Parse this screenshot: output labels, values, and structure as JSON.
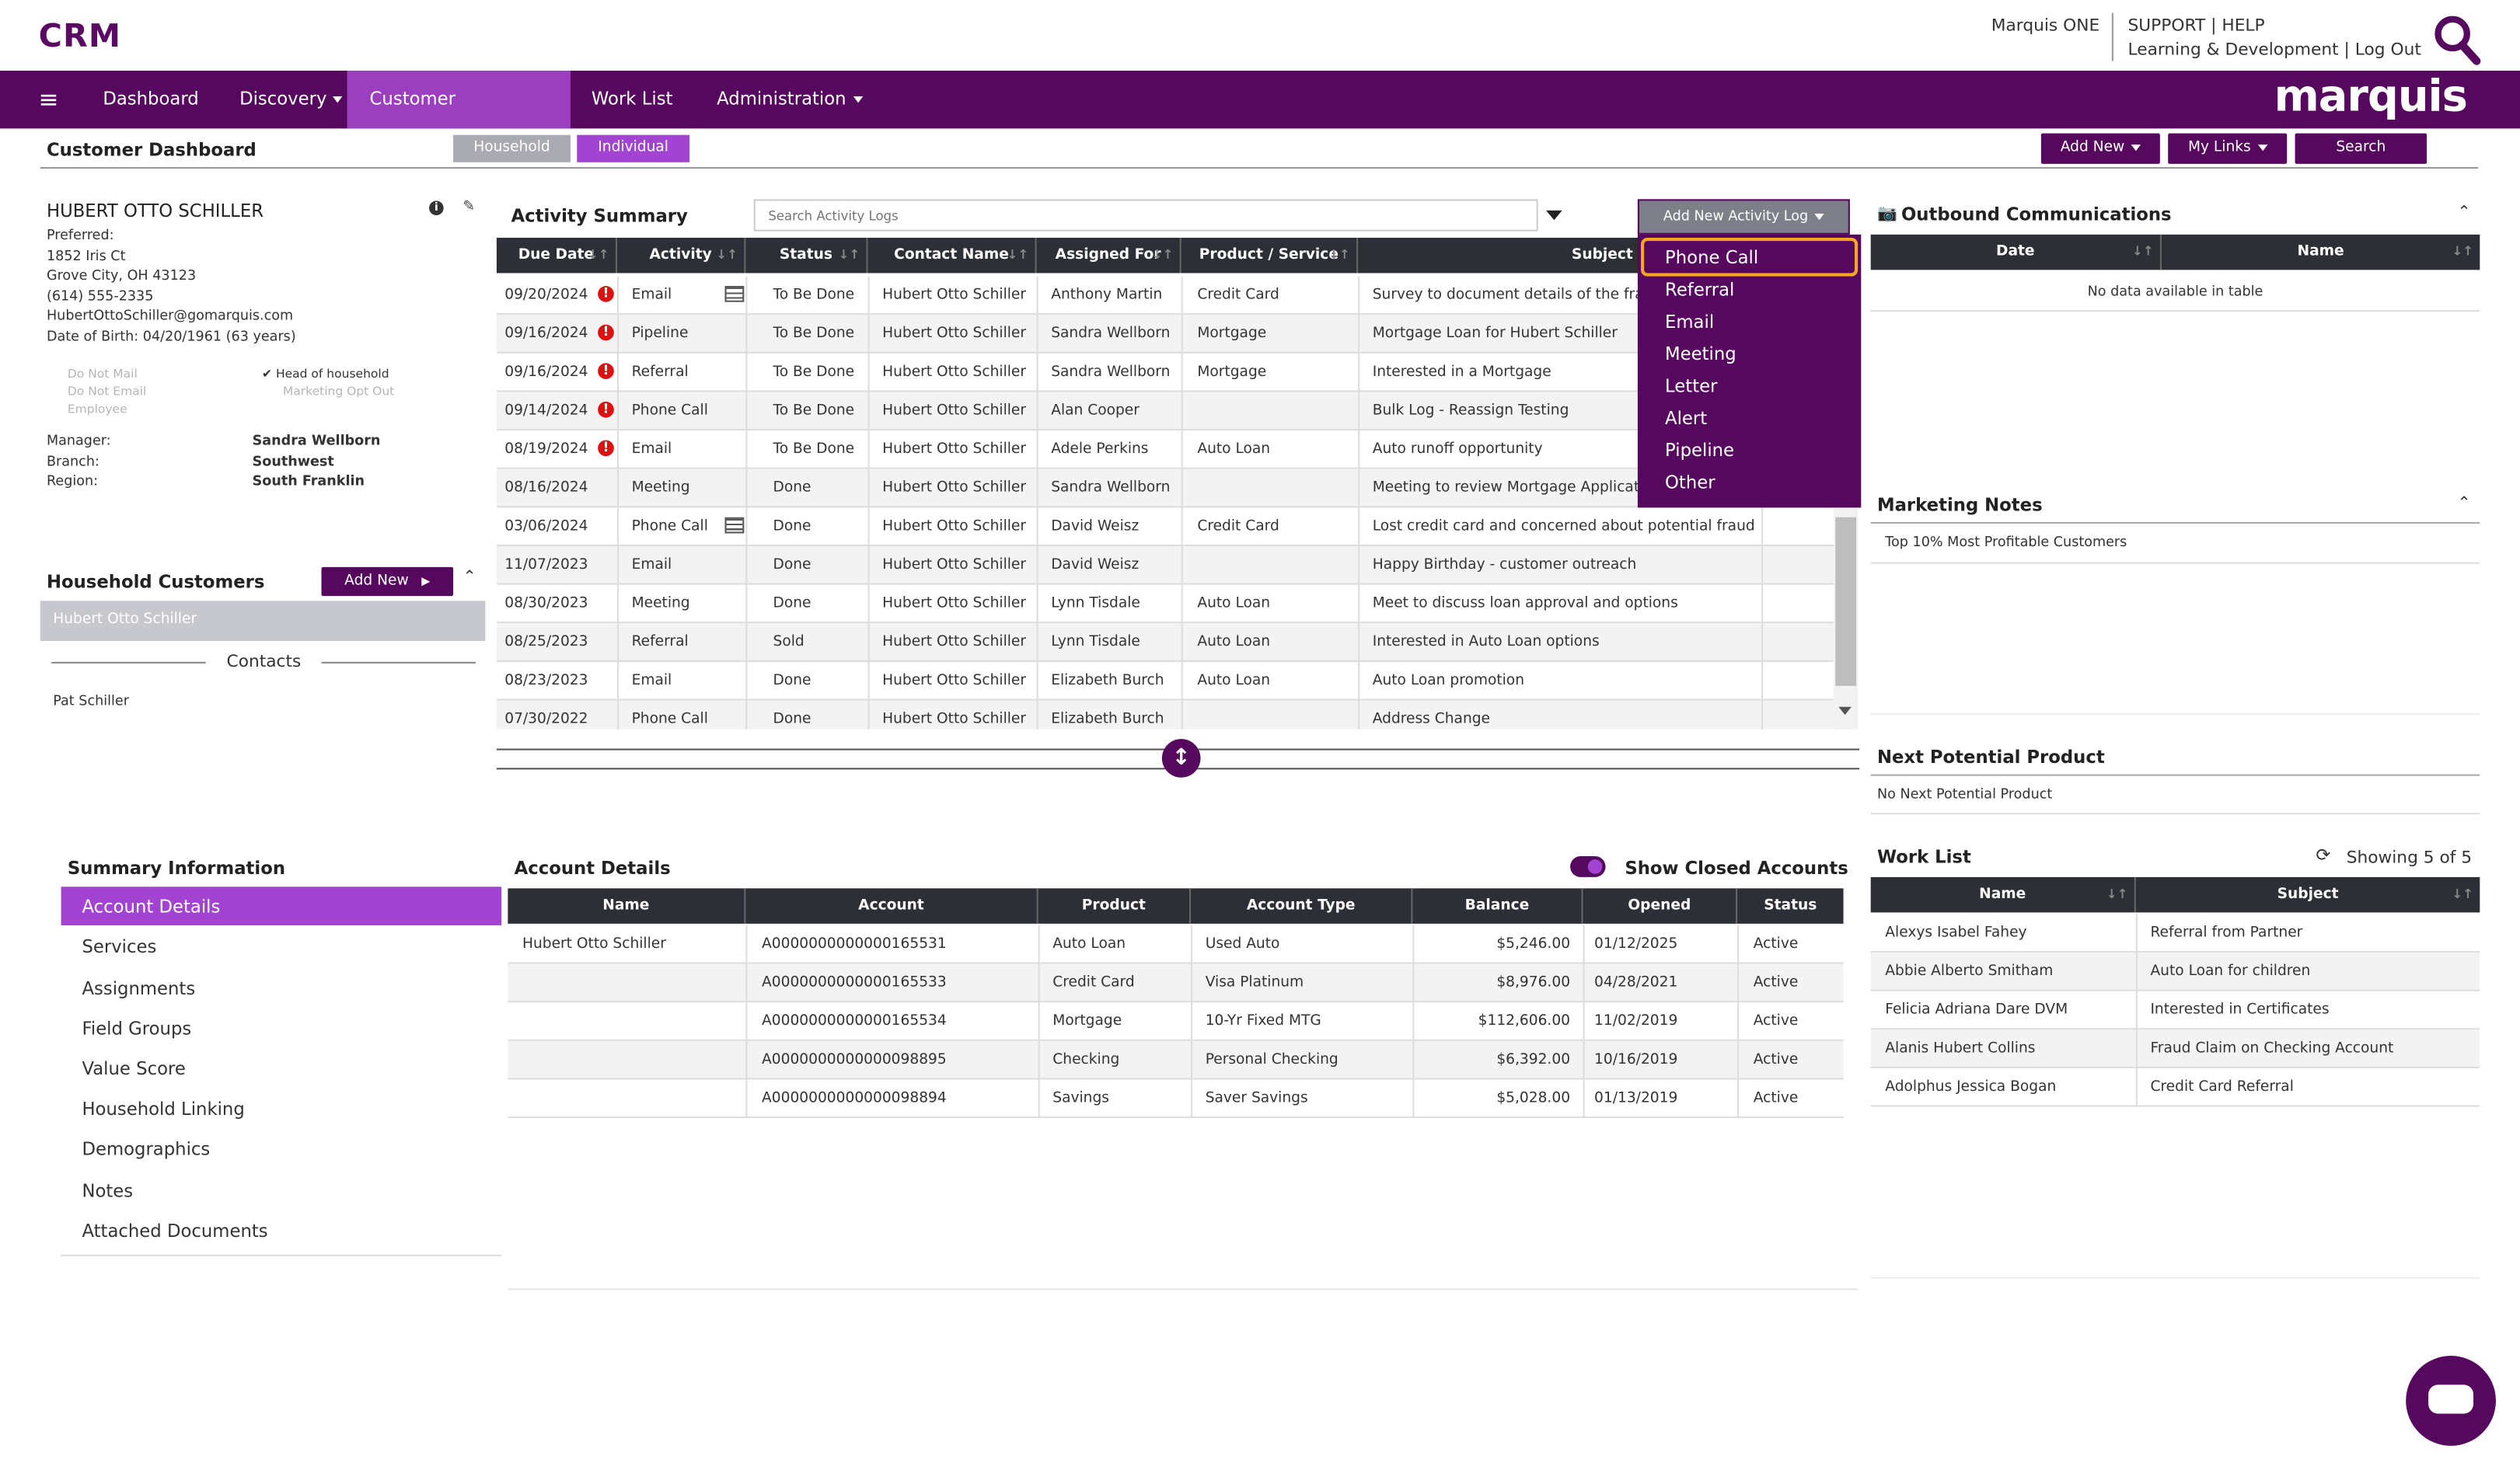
{
  "app": {
    "title": "CRM",
    "brand": "marquis"
  },
  "top_links": {
    "marquis_one": "Marquis ONE",
    "support": "SUPPORT",
    "help": "HELP",
    "learning": "Learning & Development",
    "logout": "Log Out",
    "sep": "|"
  },
  "nav": {
    "items": [
      "Dashboard",
      "Discovery",
      "Customer Dashboard",
      "Work List",
      "Administration"
    ]
  },
  "page": {
    "title": "Customer Dashboard",
    "toggle": [
      "Household",
      "Individual"
    ],
    "actions": [
      "Add New",
      "My Links",
      "Search"
    ]
  },
  "customer": {
    "name": "HUBERT OTTO SCHILLER",
    "preferred": "Preferred:",
    "address1": "1852 Iris Ct",
    "address2": "Grove City, OH 43123",
    "phone": "(614) 555-2335",
    "email": "HubertOttoSchiller@gomarquis.com",
    "dob": "Date of Birth: 04/20/1961 (63 years)",
    "flags_left": [
      "Do Not Mail",
      "Do Not Email",
      "Employee"
    ],
    "flags_right": [
      "Head of household",
      "Marketing Opt Out"
    ],
    "manager_label": "Manager:",
    "manager": "Sandra Wellborn",
    "branch_label": "Branch:",
    "branch": "Southwest",
    "region_label": "Region:",
    "region": "South Franklin"
  },
  "household": {
    "title": "Household Customers",
    "add_new": "Add New",
    "selected": "Hubert Otto Schiller",
    "contacts_label": "Contacts",
    "contact": "Pat Schiller"
  },
  "activity": {
    "title": "Activity Summary",
    "search_placeholder": "Search Activity Logs",
    "add_button": "Add New Activity Log",
    "columns": [
      "Due Date",
      "Activity",
      "Status",
      "Contact Name",
      "Assigned For",
      "Product / Service",
      "Subject"
    ],
    "rows": [
      {
        "date": "09/20/2024",
        "alert": "!",
        "activity": "Email",
        "status": "To Be Done",
        "contact": "Hubert Otto Schiller",
        "assigned": "Anthony Martin",
        "product": "Credit Card",
        "subject": "Survey to document details of the frau"
      },
      {
        "date": "09/16/2024",
        "alert": "!",
        "activity": "Pipeline",
        "status": "To Be Done",
        "contact": "Hubert Otto Schiller",
        "assigned": "Sandra Wellborn",
        "product": "Mortgage",
        "subject": "Mortgage Loan for Hubert Schiller"
      },
      {
        "date": "09/16/2024",
        "alert": "!",
        "activity": "Referral",
        "status": "To Be Done",
        "contact": "Hubert Otto Schiller",
        "assigned": "Sandra Wellborn",
        "product": "Mortgage",
        "subject": "Interested in a Mortgage"
      },
      {
        "date": "09/14/2024",
        "alert": "!",
        "activity": "Phone Call",
        "status": "To Be Done",
        "contact": "Hubert Otto Schiller",
        "assigned": "Alan Cooper",
        "product": "",
        "subject": "Bulk Log - Reassign Testing"
      },
      {
        "date": "08/19/2024",
        "alert": "!",
        "activity": "Email",
        "status": "To Be Done",
        "contact": "Hubert Otto Schiller",
        "assigned": "Adele Perkins",
        "product": "Auto Loan",
        "subject": "Auto runoff opportunity"
      },
      {
        "date": "08/16/2024",
        "alert": "",
        "activity": "Meeting",
        "status": "Done",
        "contact": "Hubert Otto Schiller",
        "assigned": "Sandra Wellborn",
        "product": "",
        "subject": "Meeting to review Mortgage Applicatio"
      },
      {
        "date": "03/06/2024",
        "alert": "",
        "activity": "Phone Call",
        "status": "Done",
        "contact": "Hubert Otto Schiller",
        "assigned": "David Weisz",
        "product": "Credit Card",
        "subject": "Lost credit card and concerned about potential fraud"
      },
      {
        "date": "11/07/2023",
        "alert": "",
        "activity": "Email",
        "status": "Done",
        "contact": "Hubert Otto Schiller",
        "assigned": "David Weisz",
        "product": "",
        "subject": "Happy Birthday - customer outreach"
      },
      {
        "date": "08/30/2023",
        "alert": "",
        "activity": "Meeting",
        "status": "Done",
        "contact": "Hubert Otto Schiller",
        "assigned": "Lynn Tisdale",
        "product": "Auto Loan",
        "subject": "Meet to discuss loan approval and options"
      },
      {
        "date": "08/25/2023",
        "alert": "",
        "activity": "Referral",
        "status": "Sold",
        "contact": "Hubert Otto Schiller",
        "assigned": "Lynn Tisdale",
        "product": "Auto Loan",
        "subject": "Interested in Auto Loan options"
      },
      {
        "date": "08/23/2023",
        "alert": "",
        "activity": "Email",
        "status": "Done",
        "contact": "Hubert Otto Schiller",
        "assigned": "Elizabeth Burch",
        "product": "Auto Loan",
        "subject": "Auto Loan promotion"
      },
      {
        "date": "07/30/2022",
        "alert": "",
        "activity": "Phone Call",
        "status": "Done",
        "contact": "Hubert Otto Schiller",
        "assigned": "Elizabeth Burch",
        "product": "",
        "subject": "Address Change"
      }
    ],
    "dropdown": [
      "Phone Call",
      "Referral",
      "Email",
      "Meeting",
      "Letter",
      "Alert",
      "Pipeline",
      "Other"
    ]
  },
  "outbound": {
    "title": "Outbound Communications",
    "columns": [
      "Date",
      "Name"
    ],
    "empty": "No data available in table"
  },
  "marketing": {
    "title": "Marketing Notes",
    "note": "Top 10% Most Profitable Customers"
  },
  "next_product": {
    "title": "Next Potential Product",
    "value": "No Next Potential Product"
  },
  "summary": {
    "title": "Summary Information",
    "items": [
      "Account Details",
      "Services",
      "Assignments",
      "Field Groups",
      "Value Score",
      "Household Linking",
      "Demographics",
      "Notes",
      "Attached Documents"
    ]
  },
  "accounts": {
    "title": "Account Details",
    "show_closed": "Show Closed Accounts",
    "columns": [
      "Name",
      "Account",
      "Product",
      "Account Type",
      "Balance",
      "Opened",
      "Status"
    ],
    "rows": [
      {
        "name": "Hubert Otto Schiller",
        "account": "A0000000000000165531",
        "product": "Auto Loan",
        "type": "Used Auto",
        "balance": "$5,246.00",
        "opened": "01/12/2025",
        "status": "Active"
      },
      {
        "name": "",
        "account": "A0000000000000165533",
        "product": "Credit Card",
        "type": "Visa Platinum",
        "balance": "$8,976.00",
        "opened": "04/28/2021",
        "status": "Active"
      },
      {
        "name": "",
        "account": "A0000000000000165534",
        "product": "Mortgage",
        "type": "10-Yr Fixed MTG",
        "balance": "$112,606.00",
        "opened": "11/02/2019",
        "status": "Active"
      },
      {
        "name": "",
        "account": "A0000000000000098895",
        "product": "Checking",
        "type": "Personal Checking",
        "balance": "$6,392.00",
        "opened": "10/16/2019",
        "status": "Active"
      },
      {
        "name": "",
        "account": "A0000000000000098894",
        "product": "Savings",
        "type": "Saver Savings",
        "balance": "$5,028.00",
        "opened": "01/13/2019",
        "status": "Active"
      }
    ]
  },
  "worklist": {
    "title": "Work List",
    "showing": "Showing 5 of 5",
    "columns": [
      "Name",
      "Subject"
    ],
    "rows": [
      {
        "name": "Alexys Isabel Fahey",
        "subject": "Referral from Partner"
      },
      {
        "name": "Abbie Alberto Smitham",
        "subject": "Auto Loan for children"
      },
      {
        "name": "Felicia Adriana Dare DVM",
        "subject": "Interested in Certificates"
      },
      {
        "name": "Alanis Hubert Collins",
        "subject": "Fraud Claim on Checking Account"
      },
      {
        "name": "Adolphus Jessica Bogan",
        "subject": "Credit Card Referral"
      }
    ]
  },
  "colors": {
    "brand": "#56075e",
    "accent": "#a343d2",
    "highlight": "#f5a623"
  }
}
